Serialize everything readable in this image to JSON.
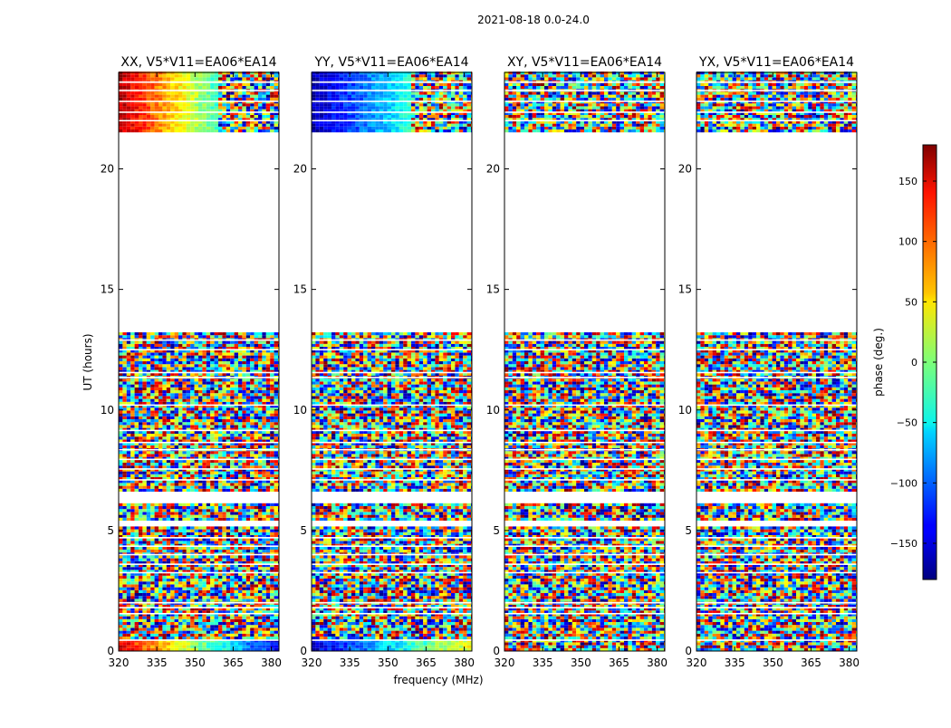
{
  "figure": {
    "suptitle": "2021-08-18 0.0-24.0",
    "xlabel": "frequency (MHz)",
    "ylabel": "UT (hours)",
    "colorbar_label": "phase (deg.)",
    "colorbar_cmap": "jet"
  },
  "chart_data": [
    {
      "type": "heatmap",
      "title": "XX, V5*V11=EA06*EA14",
      "polarization": "XX",
      "xlim": [
        320,
        383
      ],
      "ylim": [
        0,
        24
      ],
      "xticks": [
        "320",
        "335",
        "350",
        "365",
        "380"
      ],
      "yticks": [
        "0",
        "5",
        "10",
        "15",
        "20"
      ],
      "data_gaps_hours": [
        [
          13.2,
          21.5
        ]
      ],
      "colorscale": {
        "vmin": -180,
        "vmax": 180
      }
    },
    {
      "type": "heatmap",
      "title": "YY, V5*V11=EA06*EA14",
      "polarization": "YY",
      "xlim": [
        320,
        383
      ],
      "ylim": [
        0,
        24
      ],
      "xticks": [
        "320",
        "335",
        "350",
        "365",
        "380"
      ],
      "yticks": [
        "0",
        "5",
        "10",
        "15",
        "20"
      ],
      "data_gaps_hours": [
        [
          13.2,
          21.5
        ]
      ],
      "colorscale": {
        "vmin": -180,
        "vmax": 180
      }
    },
    {
      "type": "heatmap",
      "title": "XY, V5*V11=EA06*EA14",
      "polarization": "XY",
      "xlim": [
        320,
        383
      ],
      "ylim": [
        0,
        24
      ],
      "xticks": [
        "320",
        "335",
        "350",
        "365",
        "380"
      ],
      "yticks": [
        "0",
        "5",
        "10",
        "15",
        "20"
      ],
      "data_gaps_hours": [
        [
          13.2,
          21.5
        ]
      ],
      "colorscale": {
        "vmin": -180,
        "vmax": 180
      }
    },
    {
      "type": "heatmap",
      "title": "YX, V5*V11=EA06*EA14",
      "polarization": "YX",
      "xlim": [
        320,
        383
      ],
      "ylim": [
        0,
        24
      ],
      "xticks": [
        "320",
        "335",
        "350",
        "365",
        "380"
      ],
      "yticks": [
        "0",
        "5",
        "10",
        "15",
        "20"
      ],
      "data_gaps_hours": [
        [
          13.2,
          21.5
        ]
      ],
      "colorscale": {
        "vmin": -180,
        "vmax": 180
      }
    }
  ],
  "colorbar": {
    "vmin": -180,
    "vmax": 180,
    "ticks": [
      "150",
      "100",
      "50",
      "0",
      "−50",
      "−100",
      "−150"
    ],
    "tick_values": [
      150,
      100,
      50,
      0,
      -50,
      -100,
      -150
    ]
  }
}
